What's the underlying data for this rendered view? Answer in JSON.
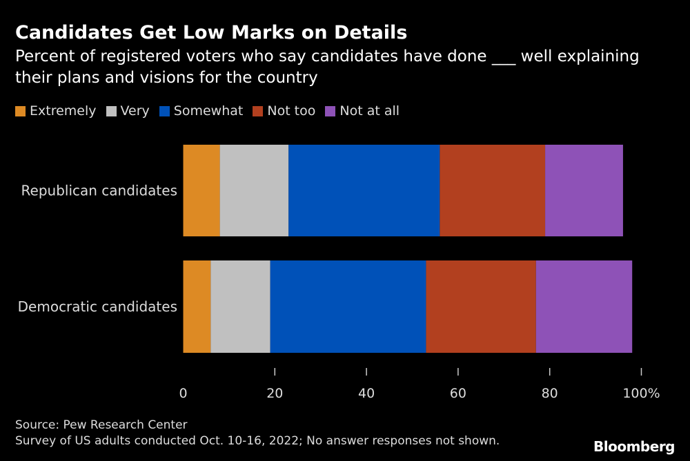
{
  "chart_data": {
    "type": "bar",
    "orientation": "horizontal",
    "stacked": true,
    "title": "Candidates Get Low Marks on Details",
    "subtitle": "Percent of registered voters who say candidates have done ___ well explaining their plans and visions for the country",
    "categories": [
      "Republican candidates",
      "Democratic candidates"
    ],
    "series": [
      {
        "name": "Extremely",
        "color": "#dd8a24",
        "values": [
          8,
          6
        ]
      },
      {
        "name": "Very",
        "color": "#c0c0c0",
        "values": [
          15,
          13
        ]
      },
      {
        "name": "Somewhat",
        "color": "#0051b8",
        "values": [
          33,
          34
        ]
      },
      {
        "name": "Not too",
        "color": "#b2401f",
        "values": [
          23,
          24
        ]
      },
      {
        "name": "Not at all",
        "color": "#8e52b7",
        "values": [
          17,
          21
        ]
      }
    ],
    "xlim": [
      0,
      100
    ],
    "xticks": [
      "0",
      "20",
      "40",
      "60",
      "80",
      "100%"
    ],
    "xtick_values": [
      0,
      20,
      40,
      60,
      80,
      100
    ],
    "legend_position": "top-left",
    "grid": false
  },
  "footer": {
    "source": "Source: Pew Research Center",
    "note": "Survey of US adults conducted Oct. 10-16, 2022; No answer responses not shown."
  },
  "brand": "Bloomberg"
}
